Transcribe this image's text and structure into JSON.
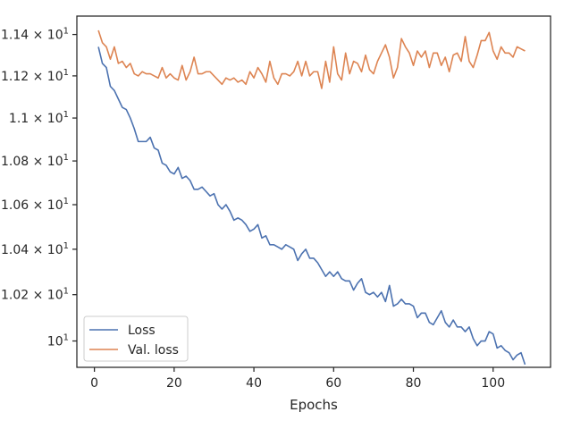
{
  "chart_data": {
    "type": "line",
    "title": "",
    "xlabel": "Epochs",
    "ylabel": "",
    "y_scale": "log",
    "xlim": [
      -4.4,
      114.4
    ],
    "ylim": [
      9.888,
      11.49
    ],
    "grid": false,
    "legend_position": "lower-left",
    "x_ticks": [
      {
        "value": 0,
        "label": "0"
      },
      {
        "value": 20,
        "label": "20"
      },
      {
        "value": 40,
        "label": "40"
      },
      {
        "value": 60,
        "label": "60"
      },
      {
        "value": 80,
        "label": "80"
      },
      {
        "value": 100,
        "label": "100"
      }
    ],
    "y_ticks": [
      {
        "value": 10.0,
        "label": "10"
      },
      {
        "value": 10.2,
        "label": "1.02 × 10"
      },
      {
        "value": 10.4,
        "label": "1.04 × 10"
      },
      {
        "value": 10.6,
        "label": "1.06 × 10"
      },
      {
        "value": 10.8,
        "label": "1.08 × 10"
      },
      {
        "value": 11.0,
        "label": "1.1 × 10"
      },
      {
        "value": 11.2,
        "label": "1.12 × 10"
      },
      {
        "value": 11.4,
        "label": "1.14 × 10"
      }
    ],
    "y_tick_superscript": "1",
    "series": [
      {
        "name": "Loss",
        "color": "#4c72b0",
        "x": [
          1,
          2,
          3,
          4,
          5,
          6,
          7,
          8,
          9,
          10,
          11,
          12,
          13,
          14,
          15,
          16,
          17,
          18,
          19,
          20,
          21,
          22,
          23,
          24,
          25,
          26,
          27,
          28,
          29,
          30,
          31,
          32,
          33,
          34,
          35,
          36,
          37,
          38,
          39,
          40,
          41,
          42,
          43,
          44,
          45,
          46,
          47,
          48,
          49,
          50,
          51,
          52,
          53,
          54,
          55,
          56,
          57,
          58,
          59,
          60,
          61,
          62,
          63,
          64,
          65,
          66,
          67,
          68,
          69,
          70,
          71,
          72,
          73,
          74,
          75,
          76,
          77,
          78,
          79,
          80,
          81,
          82,
          83,
          84,
          85,
          86,
          87,
          88,
          89,
          90,
          91,
          92,
          93,
          94,
          95,
          96,
          97,
          98,
          99,
          100,
          101,
          102,
          103,
          104,
          105,
          106,
          107,
          108
        ],
        "values": [
          11.34,
          11.26,
          11.24,
          11.15,
          11.13,
          11.09,
          11.05,
          11.04,
          11.0,
          10.95,
          10.89,
          10.89,
          10.89,
          10.91,
          10.86,
          10.85,
          10.79,
          10.78,
          10.75,
          10.74,
          10.77,
          10.72,
          10.73,
          10.71,
          10.67,
          10.67,
          10.68,
          10.66,
          10.64,
          10.65,
          10.6,
          10.58,
          10.6,
          10.57,
          10.53,
          10.54,
          10.53,
          10.51,
          10.48,
          10.49,
          10.51,
          10.45,
          10.46,
          10.42,
          10.42,
          10.41,
          10.4,
          10.42,
          10.41,
          10.4,
          10.35,
          10.38,
          10.4,
          10.36,
          10.36,
          10.34,
          10.31,
          10.28,
          10.3,
          10.28,
          10.3,
          10.27,
          10.26,
          10.26,
          10.22,
          10.25,
          10.27,
          10.21,
          10.2,
          10.21,
          10.19,
          10.21,
          10.17,
          10.24,
          10.15,
          10.16,
          10.18,
          10.16,
          10.16,
          10.15,
          10.1,
          10.12,
          10.12,
          10.08,
          10.07,
          10.1,
          10.13,
          10.08,
          10.06,
          10.09,
          10.06,
          10.06,
          10.04,
          10.06,
          10.01,
          9.98,
          10.0,
          10.0,
          10.04,
          10.03,
          9.97,
          9.98,
          9.96,
          9.95,
          9.92,
          9.94,
          9.95,
          9.9
        ]
      },
      {
        "name": "Val. loss",
        "color": "#dd8452",
        "x": [
          1,
          2,
          3,
          4,
          5,
          6,
          7,
          8,
          9,
          10,
          11,
          12,
          13,
          14,
          15,
          16,
          17,
          18,
          19,
          20,
          21,
          22,
          23,
          24,
          25,
          26,
          27,
          28,
          29,
          30,
          31,
          32,
          33,
          34,
          35,
          36,
          37,
          38,
          39,
          40,
          41,
          42,
          43,
          44,
          45,
          46,
          47,
          48,
          49,
          50,
          51,
          52,
          53,
          54,
          55,
          56,
          57,
          58,
          59,
          60,
          61,
          62,
          63,
          64,
          65,
          66,
          67,
          68,
          69,
          70,
          71,
          72,
          73,
          74,
          75,
          76,
          77,
          78,
          79,
          80,
          81,
          82,
          83,
          84,
          85,
          86,
          87,
          88,
          89,
          90,
          91,
          92,
          93,
          94,
          95,
          96,
          97,
          98,
          99,
          100,
          101,
          102,
          103,
          104,
          105,
          106,
          107,
          108
        ],
        "values": [
          11.42,
          11.36,
          11.34,
          11.28,
          11.34,
          11.26,
          11.27,
          11.24,
          11.26,
          11.21,
          11.2,
          11.22,
          11.21,
          11.21,
          11.2,
          11.19,
          11.24,
          11.19,
          11.21,
          11.19,
          11.18,
          11.25,
          11.18,
          11.22,
          11.29,
          11.21,
          11.21,
          11.22,
          11.22,
          11.2,
          11.18,
          11.16,
          11.19,
          11.18,
          11.19,
          11.17,
          11.18,
          11.16,
          11.22,
          11.19,
          11.24,
          11.21,
          11.17,
          11.27,
          11.19,
          11.16,
          11.21,
          11.21,
          11.2,
          11.22,
          11.27,
          11.2,
          11.27,
          11.2,
          11.22,
          11.22,
          11.14,
          11.27,
          11.17,
          11.34,
          11.21,
          11.18,
          11.31,
          11.21,
          11.27,
          11.26,
          11.22,
          11.3,
          11.23,
          11.21,
          11.27,
          11.31,
          11.35,
          11.29,
          11.19,
          11.24,
          11.38,
          11.34,
          11.31,
          11.25,
          11.32,
          11.29,
          11.32,
          11.24,
          11.31,
          11.31,
          11.25,
          11.29,
          11.22,
          11.3,
          11.31,
          11.27,
          11.39,
          11.27,
          11.24,
          11.3,
          11.37,
          11.37,
          11.41,
          11.32,
          11.28,
          11.34,
          11.31,
          11.31,
          11.29,
          11.34,
          11.33,
          11.32
        ]
      }
    ]
  }
}
